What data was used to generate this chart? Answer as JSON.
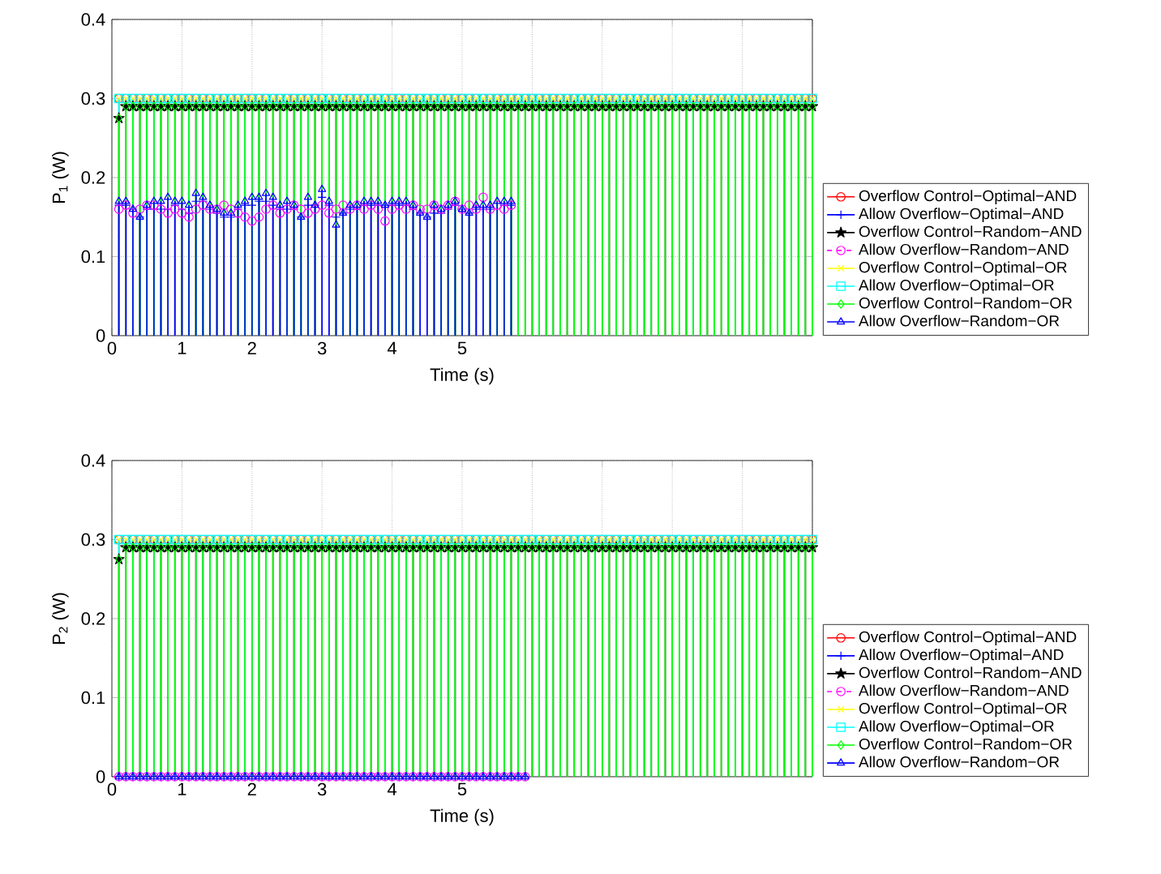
{
  "chart_data": [
    {
      "type": "lollipop",
      "xlabel": "Time (s)",
      "ylabel": "P$_{1}$ (W)",
      "x": [
        0.1,
        0.2,
        0.3,
        0.4,
        0.5,
        0.6,
        0.7,
        0.8,
        0.9,
        1.0,
        1.1,
        1.2,
        1.3,
        1.4,
        1.5,
        1.6,
        1.7,
        1.8,
        1.9,
        2.0,
        2.1,
        2.2,
        2.3,
        2.4,
        2.5,
        2.6,
        2.7,
        2.8,
        2.9,
        3.0,
        3.1,
        3.2,
        3.3,
        3.4,
        3.5,
        3.6,
        3.7,
        3.8,
        3.9,
        4.0,
        4.1,
        4.2,
        4.3,
        4.4,
        4.5,
        4.6,
        4.7,
        4.8,
        4.9,
        5.0,
        5.1,
        5.2,
        5.3,
        5.4,
        5.5,
        5.6,
        5.7,
        5.8,
        5.9,
        6.0,
        6.1,
        6.2,
        6.3,
        6.4,
        6.5,
        6.6,
        6.7,
        6.8,
        6.9,
        7.0,
        7.1,
        7.2,
        7.3,
        7.4,
        7.5,
        7.6,
        7.7,
        7.8,
        7.9,
        8.0,
        8.1,
        8.2,
        8.3,
        8.4,
        8.5,
        8.6,
        8.7,
        8.8,
        8.9,
        9.0,
        9.1,
        9.2,
        9.3,
        9.4,
        9.5,
        9.6,
        9.7,
        9.8,
        9.9,
        10.0
      ],
      "xlim": [
        0,
        10
      ],
      "ylim": [
        0,
        0.4
      ],
      "xticks": [
        0,
        1,
        2,
        3,
        4,
        5,
        {
          "value": 6,
          "label": null
        },
        {
          "value": 7,
          "label": null
        },
        {
          "value": 8,
          "label": null
        },
        {
          "value": 9,
          "label": null
        },
        {
          "value": 10,
          "label": null
        }
      ],
      "yticks": [
        0,
        0.1,
        0.2,
        0.3,
        0.4
      ],
      "grid": true,
      "legend": "bottom right",
      "series": [
        {
          "name": "Overflow Control−Optimal−AND",
          "color": "#ff0000",
          "marker": "circle",
          "line_style": "solid",
          "values": [
            0.3,
            0.3,
            0.3,
            0.3,
            0.3,
            0.3,
            0.3,
            0.3,
            0.3,
            0.3,
            0.3,
            0.3,
            0.3,
            0.3,
            0.3,
            0.3,
            0.3,
            0.3,
            0.3,
            0.3,
            0.3,
            0.3,
            0.3,
            0.3,
            0.3,
            0.3,
            0.3,
            0.3,
            0.3,
            0.3,
            0.3,
            0.3,
            0.3,
            0.3,
            0.3,
            0.3,
            0.3,
            0.3,
            0.3,
            0.3,
            0.3,
            0.3,
            0.3,
            0.3,
            0.3,
            0.3,
            0.3,
            0.3,
            0.3,
            0.3,
            0.3,
            0.3,
            0.3,
            0.3,
            0.3,
            0.3,
            0.3,
            0.3,
            0.3,
            0.3,
            0.3,
            0.3,
            0.3,
            0.3,
            0.3,
            0.3,
            0.3,
            0.3,
            0.3,
            0.3,
            0.3,
            0.3,
            0.3,
            0.3,
            0.3,
            0.3,
            0.3,
            0.3,
            0.3,
            0.3,
            0.3,
            0.3,
            0.3,
            0.3,
            0.3,
            0.3,
            0.3,
            0.3,
            0.3,
            0.3,
            0.3,
            0.3,
            0.3,
            0.3,
            0.3,
            0.3,
            0.3,
            0.3,
            0.3,
            0.3
          ]
        },
        {
          "name": "Allow Overflow−Optimal−AND",
          "color": "#0000ff",
          "marker": "plus",
          "line_style": "solid",
          "values": [
            0.165,
            0.165,
            0.16,
            0.15,
            0.16,
            0.16,
            0.16,
            0.16,
            0.165,
            0.16,
            0.155,
            0.17,
            0.17,
            0.16,
            0.155,
            0.15,
            0.15,
            0.16,
            0.165,
            0.165,
            0.17,
            0.17,
            0.165,
            0.16,
            0.16,
            0.16,
            0.15,
            0.165,
            0.165,
            0.175,
            0.165,
            0.15,
            0.155,
            0.16,
            0.16,
            0.165,
            0.165,
            0.165,
            0.165,
            0.165,
            0.165,
            0.165,
            0.16,
            0.155,
            0.15,
            0.155,
            0.155,
            0.16,
            0.165,
            0.16,
            0.155,
            0.16,
            0.16,
            0.16,
            null,
            0.165,
            0.165,
            null,
            null,
            null,
            null,
            null,
            null,
            null,
            null,
            null,
            null,
            null,
            null,
            null,
            null,
            null,
            null,
            null,
            null,
            null,
            null,
            null,
            null,
            null,
            null,
            null,
            null,
            null,
            null,
            null,
            null,
            null,
            null,
            null,
            null,
            null,
            null,
            null,
            null,
            null,
            null,
            null,
            null,
            null
          ]
        },
        {
          "name": "Overflow Control−Random−AND",
          "color": "#000000",
          "marker": "star",
          "line_style": "solid",
          "values": [
            0.275,
            0.29,
            0.29,
            0.29,
            0.29,
            0.29,
            0.29,
            0.29,
            0.29,
            0.29,
            0.29,
            0.29,
            0.29,
            0.29,
            0.29,
            0.29,
            0.29,
            0.29,
            0.29,
            0.29,
            0.29,
            0.29,
            0.29,
            0.29,
            0.29,
            0.29,
            0.29,
            0.29,
            0.29,
            0.29,
            0.29,
            0.29,
            0.29,
            0.29,
            0.29,
            0.29,
            0.29,
            0.29,
            0.29,
            0.29,
            0.29,
            0.29,
            0.29,
            0.29,
            0.29,
            0.29,
            0.29,
            0.29,
            0.29,
            0.29,
            0.29,
            0.29,
            0.29,
            0.29,
            0.29,
            0.29,
            0.29,
            0.29,
            0.29,
            0.29,
            0.29,
            0.29,
            0.29,
            0.29,
            0.29,
            0.29,
            0.29,
            0.29,
            0.29,
            0.29,
            0.29,
            0.29,
            0.29,
            0.29,
            0.29,
            0.29,
            0.29,
            0.29,
            0.29,
            0.29,
            0.29,
            0.29,
            0.29,
            0.29,
            0.29,
            0.29,
            0.29,
            0.29,
            0.29,
            0.29,
            0.29,
            0.29,
            0.29,
            0.29,
            0.29,
            0.29,
            0.29,
            0.29,
            0.29,
            0.29
          ]
        },
        {
          "name": "Allow Overflow−Random−AND",
          "color": "#ff00ff",
          "marker": "circle",
          "line_style": "dashed",
          "values": [
            0.16,
            0.165,
            0.155,
            0.16,
            0.165,
            0.165,
            0.16,
            0.155,
            0.16,
            0.155,
            0.15,
            0.16,
            0.165,
            0.16,
            0.16,
            0.165,
            0.16,
            0.155,
            0.15,
            0.145,
            0.15,
            0.16,
            0.165,
            0.155,
            0.16,
            0.165,
            0.16,
            0.155,
            0.16,
            0.165,
            0.155,
            0.16,
            0.165,
            0.16,
            0.165,
            0.16,
            0.165,
            0.16,
            0.145,
            0.16,
            0.165,
            0.16,
            0.165,
            0.16,
            0.16,
            0.165,
            0.16,
            0.165,
            0.17,
            0.16,
            0.165,
            0.16,
            0.175,
            0.16,
            0.165,
            0.16,
            0.165,
            null,
            null,
            null,
            null,
            null,
            null,
            null,
            null,
            null,
            null,
            null,
            null,
            null,
            null,
            null,
            null,
            null,
            null,
            null,
            null,
            null,
            null,
            null,
            null,
            null,
            null,
            null,
            null,
            null,
            null,
            null,
            null,
            null,
            null,
            null,
            null,
            null,
            null,
            null,
            null,
            null,
            null,
            null
          ]
        },
        {
          "name": "Overflow Control−Optimal−OR",
          "color": "#ffff00",
          "marker": "cross",
          "line_style": "solid",
          "values": [
            0.3,
            0.3,
            0.3,
            0.3,
            0.3,
            0.3,
            0.3,
            0.3,
            0.3,
            0.3,
            0.3,
            0.3,
            0.3,
            0.3,
            0.3,
            0.3,
            0.3,
            0.3,
            0.3,
            0.3,
            0.3,
            0.3,
            0.3,
            0.3,
            0.3,
            0.3,
            0.3,
            0.3,
            0.3,
            0.3,
            0.3,
            0.3,
            0.3,
            0.3,
            0.3,
            0.3,
            0.3,
            0.3,
            0.3,
            0.3,
            0.3,
            0.3,
            0.3,
            0.3,
            0.3,
            0.3,
            0.3,
            0.3,
            0.3,
            0.3,
            0.3,
            0.3,
            0.3,
            0.3,
            0.3,
            0.3,
            0.3,
            0.3,
            0.3,
            0.3,
            0.3,
            0.3,
            0.3,
            0.3,
            0.3,
            0.3,
            0.3,
            0.3,
            0.3,
            0.3,
            0.3,
            0.3,
            0.3,
            0.3,
            0.3,
            0.3,
            0.3,
            0.3,
            0.3,
            0.3,
            0.3,
            0.3,
            0.3,
            0.3,
            0.3,
            0.3,
            0.3,
            0.3,
            0.3,
            0.3,
            0.3,
            0.3,
            0.3,
            0.3,
            0.3,
            0.3,
            0.3,
            0.3,
            0.3,
            0.3
          ]
        },
        {
          "name": "Allow Overflow−Optimal−OR",
          "color": "#00ffff",
          "marker": "square",
          "line_style": "solid",
          "values": [
            0.3,
            0.3,
            0.3,
            0.3,
            0.3,
            0.3,
            0.3,
            0.3,
            0.3,
            0.3,
            0.3,
            0.3,
            0.3,
            0.3,
            0.3,
            0.3,
            0.3,
            0.3,
            0.3,
            0.3,
            0.3,
            0.3,
            0.3,
            0.3,
            0.3,
            0.3,
            0.3,
            0.3,
            0.3,
            0.3,
            0.3,
            0.3,
            0.3,
            0.3,
            0.3,
            0.3,
            0.3,
            0.3,
            0.3,
            0.3,
            0.3,
            0.3,
            0.3,
            0.3,
            0.3,
            0.3,
            0.3,
            0.3,
            0.3,
            0.3,
            0.3,
            0.3,
            0.3,
            0.3,
            0.3,
            0.3,
            0.3,
            0.3,
            0.3,
            0.3,
            0.3,
            0.3,
            0.3,
            0.3,
            0.3,
            0.3,
            0.3,
            0.3,
            0.3,
            0.3,
            0.3,
            0.3,
            0.3,
            0.3,
            0.3,
            0.3,
            0.3,
            0.3,
            0.3,
            0.3,
            0.3,
            0.3,
            0.3,
            0.3,
            0.3,
            0.3,
            0.3,
            0.3,
            0.3,
            0.3,
            0.3,
            0.3,
            0.3,
            0.3,
            0.3,
            0.3,
            0.3,
            0.3,
            0.3,
            0.3
          ]
        },
        {
          "name": "Overflow Control−Random−OR",
          "color": "#00ff00",
          "marker": "diamond",
          "line_style": "solid",
          "values": [
            0.275,
            0.29,
            0.29,
            0.29,
            0.29,
            0.29,
            0.29,
            0.29,
            0.29,
            0.29,
            0.29,
            0.29,
            0.29,
            0.29,
            0.29,
            0.29,
            0.29,
            0.29,
            0.29,
            0.29,
            0.29,
            0.29,
            0.29,
            0.29,
            0.29,
            0.29,
            0.29,
            0.29,
            0.29,
            0.29,
            0.29,
            0.29,
            0.29,
            0.29,
            0.29,
            0.29,
            0.29,
            0.29,
            0.29,
            0.29,
            0.29,
            0.29,
            0.29,
            0.29,
            0.29,
            0.29,
            0.29,
            0.29,
            0.29,
            0.29,
            0.29,
            0.29,
            0.29,
            0.29,
            0.29,
            0.29,
            0.29,
            0.29,
            0.29,
            0.29,
            0.29,
            0.29,
            0.29,
            0.29,
            0.29,
            0.29,
            0.29,
            0.29,
            0.29,
            0.29,
            0.29,
            0.29,
            0.29,
            0.29,
            0.29,
            0.29,
            0.29,
            0.29,
            0.29,
            0.29,
            0.29,
            0.29,
            0.29,
            0.29,
            0.29,
            0.29,
            0.29,
            0.29,
            0.29,
            0.29,
            0.29,
            0.29,
            0.29,
            0.29,
            0.29,
            0.29,
            0.29,
            0.29,
            0.29,
            0.29
          ]
        },
        {
          "name": "Allow Overflow−Random−OR",
          "color": "#0000ff",
          "marker": "triangle",
          "line_style": "solid",
          "values": [
            0.17,
            0.17,
            0.16,
            0.15,
            0.165,
            0.17,
            0.17,
            0.175,
            0.17,
            0.17,
            0.165,
            0.18,
            0.175,
            0.165,
            0.16,
            0.155,
            0.155,
            0.165,
            0.17,
            0.175,
            0.175,
            0.18,
            0.175,
            0.165,
            0.17,
            0.165,
            0.15,
            0.175,
            0.165,
            0.185,
            0.17,
            0.14,
            0.155,
            0.165,
            0.165,
            0.17,
            0.17,
            0.17,
            0.165,
            0.17,
            0.17,
            0.17,
            0.165,
            0.155,
            0.15,
            0.165,
            0.16,
            0.165,
            0.17,
            0.16,
            0.155,
            0.165,
            0.165,
            0.165,
            0.17,
            0.17,
            0.17,
            null,
            null,
            null,
            null,
            null,
            null,
            null,
            null,
            null,
            null,
            null,
            null,
            null,
            null,
            null,
            null,
            null,
            null,
            null,
            null,
            null,
            null,
            null,
            null,
            null,
            null,
            null,
            null,
            null,
            null,
            null,
            null,
            null,
            null,
            null,
            null,
            null,
            null,
            null,
            null,
            null,
            null,
            null
          ]
        }
      ]
    },
    {
      "type": "lollipop",
      "xlabel": "Time (s)",
      "ylabel": "P$_{2}$ (W)",
      "x": [
        0.1,
        0.2,
        0.3,
        0.4,
        0.5,
        0.6,
        0.7,
        0.8,
        0.9,
        1.0,
        1.1,
        1.2,
        1.3,
        1.4,
        1.5,
        1.6,
        1.7,
        1.8,
        1.9,
        2.0,
        2.1,
        2.2,
        2.3,
        2.4,
        2.5,
        2.6,
        2.7,
        2.8,
        2.9,
        3.0,
        3.1,
        3.2,
        3.3,
        3.4,
        3.5,
        3.6,
        3.7,
        3.8,
        3.9,
        4.0,
        4.1,
        4.2,
        4.3,
        4.4,
        4.5,
        4.6,
        4.7,
        4.8,
        4.9,
        5.0,
        5.1,
        5.2,
        5.3,
        5.4,
        5.5,
        5.6,
        5.7,
        5.8,
        5.9,
        6.0,
        6.1,
        6.2,
        6.3,
        6.4,
        6.5,
        6.6,
        6.7,
        6.8,
        6.9,
        7.0,
        7.1,
        7.2,
        7.3,
        7.4,
        7.5,
        7.6,
        7.7,
        7.8,
        7.9,
        8.0,
        8.1,
        8.2,
        8.3,
        8.4,
        8.5,
        8.6,
        8.7,
        8.8,
        8.9,
        9.0,
        9.1,
        9.2,
        9.3,
        9.4,
        9.5,
        9.6,
        9.7,
        9.8,
        9.9,
        10.0
      ],
      "xlim": [
        0,
        10
      ],
      "ylim": [
        0,
        0.4
      ],
      "xticks": [
        0,
        1,
        2,
        3,
        4,
        5,
        {
          "value": 6,
          "label": null
        },
        {
          "value": 7,
          "label": null
        },
        {
          "value": 8,
          "label": null
        },
        {
          "value": 9,
          "label": null
        },
        {
          "value": 10,
          "label": null
        }
      ],
      "yticks": [
        0,
        0.1,
        0.2,
        0.3,
        0.4
      ],
      "grid": true,
      "legend": "bottom right",
      "series": [
        {
          "name": "Overflow Control−Optimal−AND",
          "color": "#ff0000",
          "marker": "circle",
          "line_style": "solid",
          "values": [
            0.3,
            0.3,
            0.3,
            0.3,
            0.3,
            0.3,
            0.3,
            0.3,
            0.3,
            0.3,
            0.3,
            0.3,
            0.3,
            0.3,
            0.3,
            0.3,
            0.3,
            0.3,
            0.3,
            0.3,
            0.3,
            0.3,
            0.3,
            0.3,
            0.3,
            0.3,
            0.3,
            0.3,
            0.3,
            0.3,
            0.3,
            0.3,
            0.3,
            0.3,
            0.3,
            0.3,
            0.3,
            0.3,
            0.3,
            0.3,
            0.3,
            0.3,
            0.3,
            0.3,
            0.3,
            0.3,
            0.3,
            0.3,
            0.3,
            0.3,
            0.3,
            0.3,
            0.3,
            0.3,
            0.3,
            0.3,
            0.3,
            0.3,
            0.3,
            0.3,
            0.3,
            0.3,
            0.3,
            0.3,
            0.3,
            0.3,
            0.3,
            0.3,
            0.3,
            0.3,
            0.3,
            0.3,
            0.3,
            0.3,
            0.3,
            0.3,
            0.3,
            0.3,
            0.3,
            0.3,
            0.3,
            0.3,
            0.3,
            0.3,
            0.3,
            0.3,
            0.3,
            0.3,
            0.3,
            0.3,
            0.3,
            0.3,
            0.3,
            0.3,
            0.3,
            0.3,
            0.3,
            0.3,
            0.3,
            0.3
          ]
        },
        {
          "name": "Allow Overflow−Optimal−AND",
          "color": "#0000ff",
          "marker": "plus",
          "line_style": "solid",
          "values": [
            0,
            0,
            0,
            0,
            0,
            0,
            0,
            0,
            0,
            0,
            0,
            0,
            0,
            0,
            0,
            0,
            0,
            0,
            0,
            0,
            0,
            0,
            0,
            0,
            0,
            0,
            0,
            0,
            0,
            0,
            0,
            0,
            0,
            0,
            0,
            0,
            0,
            0,
            0,
            0,
            0,
            0,
            0,
            0,
            0,
            0,
            0,
            0,
            0,
            0,
            0,
            0,
            0,
            0,
            0,
            0,
            0,
            0,
            0,
            null,
            null,
            null,
            null,
            null,
            null,
            null,
            null,
            null,
            null,
            null,
            null,
            null,
            null,
            null,
            null,
            null,
            null,
            null,
            null,
            null,
            null,
            null,
            null,
            null,
            null,
            null,
            null,
            null,
            null,
            null,
            null,
            null,
            null,
            null,
            null,
            null,
            null,
            null,
            null,
            null
          ]
        },
        {
          "name": "Overflow Control−Random−AND",
          "color": "#000000",
          "marker": "star",
          "line_style": "solid",
          "values": [
            0.275,
            0.29,
            0.29,
            0.29,
            0.29,
            0.29,
            0.29,
            0.29,
            0.29,
            0.29,
            0.29,
            0.29,
            0.29,
            0.29,
            0.29,
            0.29,
            0.29,
            0.29,
            0.29,
            0.29,
            0.29,
            0.29,
            0.29,
            0.29,
            0.29,
            0.29,
            0.29,
            0.29,
            0.29,
            0.29,
            0.29,
            0.29,
            0.29,
            0.29,
            0.29,
            0.29,
            0.29,
            0.29,
            0.29,
            0.29,
            0.29,
            0.29,
            0.29,
            0.29,
            0.29,
            0.29,
            0.29,
            0.29,
            0.29,
            0.29,
            0.29,
            0.29,
            0.29,
            0.29,
            0.29,
            0.29,
            0.29,
            0.29,
            0.29,
            0.29,
            0.29,
            0.29,
            0.29,
            0.29,
            0.29,
            0.29,
            0.29,
            0.29,
            0.29,
            0.29,
            0.29,
            0.29,
            0.29,
            0.29,
            0.29,
            0.29,
            0.29,
            0.29,
            0.29,
            0.29,
            0.29,
            0.29,
            0.29,
            0.29,
            0.29,
            0.29,
            0.29,
            0.29,
            0.29,
            0.29,
            0.29,
            0.29,
            0.29,
            0.29,
            0.29,
            0.29,
            0.29,
            0.29,
            0.29,
            0.29
          ]
        },
        {
          "name": "Allow Overflow−Random−AND",
          "color": "#ff00ff",
          "marker": "circle",
          "line_style": "dashed",
          "values": [
            0,
            0,
            0,
            0,
            0,
            0,
            0,
            0,
            0,
            0,
            0,
            0,
            0,
            0,
            0,
            0,
            0,
            0,
            0,
            0,
            0,
            0,
            0,
            0,
            0,
            0,
            0,
            0,
            0,
            0,
            0,
            0,
            0,
            0,
            0,
            0,
            0,
            0,
            0,
            0,
            0,
            0,
            0,
            0,
            0,
            0,
            0,
            0,
            0,
            0,
            0,
            0,
            0,
            0,
            0,
            0,
            0,
            0,
            0,
            null,
            null,
            null,
            null,
            null,
            null,
            null,
            null,
            null,
            null,
            null,
            null,
            null,
            null,
            null,
            null,
            null,
            null,
            null,
            null,
            null,
            null,
            null,
            null,
            null,
            null,
            null,
            null,
            null,
            null,
            null,
            null,
            null,
            null,
            null,
            null,
            null,
            null,
            null,
            null,
            null
          ]
        },
        {
          "name": "Overflow Control−Optimal−OR",
          "color": "#ffff00",
          "marker": "cross",
          "line_style": "solid",
          "values": [
            0.3,
            0.3,
            0.3,
            0.3,
            0.3,
            0.3,
            0.3,
            0.3,
            0.3,
            0.3,
            0.3,
            0.3,
            0.3,
            0.3,
            0.3,
            0.3,
            0.3,
            0.3,
            0.3,
            0.3,
            0.3,
            0.3,
            0.3,
            0.3,
            0.3,
            0.3,
            0.3,
            0.3,
            0.3,
            0.3,
            0.3,
            0.3,
            0.3,
            0.3,
            0.3,
            0.3,
            0.3,
            0.3,
            0.3,
            0.3,
            0.3,
            0.3,
            0.3,
            0.3,
            0.3,
            0.3,
            0.3,
            0.3,
            0.3,
            0.3,
            0.3,
            0.3,
            0.3,
            0.3,
            0.3,
            0.3,
            0.3,
            0.3,
            0.3,
            0.3,
            0.3,
            0.3,
            0.3,
            0.3,
            0.3,
            0.3,
            0.3,
            0.3,
            0.3,
            0.3,
            0.3,
            0.3,
            0.3,
            0.3,
            0.3,
            0.3,
            0.3,
            0.3,
            0.3,
            0.3,
            0.3,
            0.3,
            0.3,
            0.3,
            0.3,
            0.3,
            0.3,
            0.3,
            0.3,
            0.3,
            0.3,
            0.3,
            0.3,
            0.3,
            0.3,
            0.3,
            0.3,
            0.3,
            0.3,
            0.3
          ]
        },
        {
          "name": "Allow Overflow−Optimal−OR",
          "color": "#00ffff",
          "marker": "square",
          "line_style": "solid",
          "values": [
            0.3,
            0.3,
            0.3,
            0.3,
            0.3,
            0.3,
            0.3,
            0.3,
            0.3,
            0.3,
            0.3,
            0.3,
            0.3,
            0.3,
            0.3,
            0.3,
            0.3,
            0.3,
            0.3,
            0.3,
            0.3,
            0.3,
            0.3,
            0.3,
            0.3,
            0.3,
            0.3,
            0.3,
            0.3,
            0.3,
            0.3,
            0.3,
            0.3,
            0.3,
            0.3,
            0.3,
            0.3,
            0.3,
            0.3,
            0.3,
            0.3,
            0.3,
            0.3,
            0.3,
            0.3,
            0.3,
            0.3,
            0.3,
            0.3,
            0.3,
            0.3,
            0.3,
            0.3,
            0.3,
            0.3,
            0.3,
            0.3,
            0.3,
            0.3,
            0.3,
            0.3,
            0.3,
            0.3,
            0.3,
            0.3,
            0.3,
            0.3,
            0.3,
            0.3,
            0.3,
            0.3,
            0.3,
            0.3,
            0.3,
            0.3,
            0.3,
            0.3,
            0.3,
            0.3,
            0.3,
            0.3,
            0.3,
            0.3,
            0.3,
            0.3,
            0.3,
            0.3,
            0.3,
            0.3,
            0.3,
            0.3,
            0.3,
            0.3,
            0.3,
            0.3,
            0.3,
            0.3,
            0.3,
            0.3,
            0.3
          ]
        },
        {
          "name": "Overflow Control−Random−OR",
          "color": "#00ff00",
          "marker": "diamond",
          "line_style": "solid",
          "values": [
            0.275,
            0.29,
            0.29,
            0.29,
            0.29,
            0.29,
            0.29,
            0.29,
            0.29,
            0.29,
            0.29,
            0.29,
            0.29,
            0.29,
            0.29,
            0.29,
            0.29,
            0.29,
            0.29,
            0.29,
            0.29,
            0.29,
            0.29,
            0.29,
            0.29,
            0.29,
            0.29,
            0.29,
            0.29,
            0.29,
            0.29,
            0.29,
            0.29,
            0.29,
            0.29,
            0.29,
            0.29,
            0.29,
            0.29,
            0.29,
            0.29,
            0.29,
            0.29,
            0.29,
            0.29,
            0.29,
            0.29,
            0.29,
            0.29,
            0.29,
            0.29,
            0.29,
            0.29,
            0.29,
            0.29,
            0.29,
            0.29,
            0.29,
            0.29,
            0.29,
            0.29,
            0.29,
            0.29,
            0.29,
            0.29,
            0.29,
            0.29,
            0.29,
            0.29,
            0.29,
            0.29,
            0.29,
            0.29,
            0.29,
            0.29,
            0.29,
            0.29,
            0.29,
            0.29,
            0.29,
            0.29,
            0.29,
            0.29,
            0.29,
            0.29,
            0.29,
            0.29,
            0.29,
            0.29,
            0.29,
            0.29,
            0.29,
            0.29,
            0.29,
            0.29,
            0.29,
            0.29,
            0.29,
            0.29,
            0.29
          ]
        },
        {
          "name": "Allow Overflow−Random−OR",
          "color": "#0000ff",
          "marker": "triangle",
          "line_style": "solid",
          "values": [
            0,
            0,
            0,
            0,
            0,
            0,
            0,
            0,
            0,
            0,
            0,
            0,
            0,
            0,
            0,
            0,
            0,
            0,
            0,
            0,
            0,
            0,
            0,
            0,
            0,
            0,
            0,
            0,
            0,
            0,
            0,
            0,
            0,
            0,
            0,
            0,
            0,
            0,
            0,
            0,
            0,
            0,
            0,
            0,
            0,
            0,
            0,
            0,
            0,
            0,
            0,
            0,
            0,
            0,
            0,
            0,
            0,
            0,
            0,
            null,
            null,
            null,
            null,
            null,
            null,
            null,
            null,
            null,
            null,
            null,
            null,
            null,
            null,
            null,
            null,
            null,
            null,
            null,
            null,
            null,
            null,
            null,
            null,
            null,
            null,
            null,
            null,
            null,
            null,
            null,
            null,
            null,
            null,
            null,
            null,
            null,
            null,
            null,
            null,
            null
          ]
        }
      ]
    }
  ]
}
